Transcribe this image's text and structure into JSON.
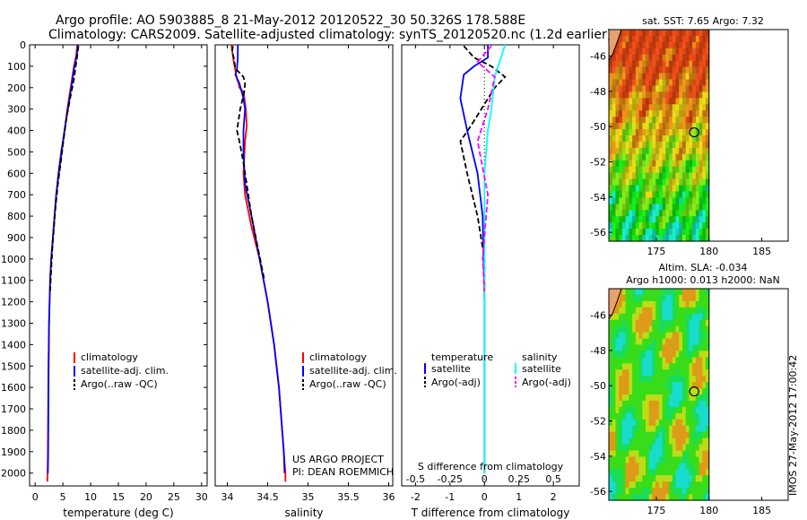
{
  "figure": {
    "title_line1": "Argo profile: AO 5903885_8 21-May-2012 20120522_30 50.326S 178.588E",
    "title_line2": "Climatology: CARS2009. Satellite-adjusted climatology: synTS_20120520.nc (1.2d earlier)",
    "side_stamp": "IMOS 27-May-2012 17:00:42",
    "project_line1": "US ARGO PROJECT",
    "project_line2": "PI: DEAN ROEMMICH"
  },
  "colors": {
    "climatology": "#ff0000",
    "satellite": "#0000ff",
    "argo": "#000000",
    "salinity_satellite": "#00ffff",
    "salinity_argo": "#ff00ff",
    "land": "#e8a070"
  },
  "chart_data": [
    {
      "type": "line",
      "panel": "temperature",
      "xlabel": "temperature (deg C)",
      "ylabel": "",
      "xlim": [
        -1,
        31
      ],
      "ylim": [
        2060,
        0
      ],
      "y_reversed": true,
      "xticks": [
        0,
        5,
        10,
        15,
        20,
        25,
        30
      ],
      "yticks": [
        0,
        100,
        200,
        300,
        400,
        500,
        600,
        700,
        800,
        900,
        1000,
        1100,
        1200,
        1300,
        1400,
        1500,
        1600,
        1700,
        1800,
        1900,
        2000
      ],
      "legend": [
        "climatology",
        "satellite-adj. clim.",
        "Argo(..raw -QC)"
      ],
      "legend_position": "lower-center",
      "series": [
        {
          "name": "climatology",
          "color": "#ff0000",
          "style": "solid",
          "x": [
            7.6,
            7.4,
            7.0,
            6.4,
            5.8,
            5.3,
            4.8,
            4.3,
            3.8,
            3.5,
            3.2,
            2.9,
            2.7,
            2.6,
            2.5,
            2.4,
            2.35,
            2.3,
            2.25,
            2.2
          ],
          "y": [
            0,
            50,
            100,
            200,
            300,
            400,
            500,
            600,
            700,
            800,
            900,
            1000,
            1100,
            1200,
            1300,
            1500,
            1700,
            1900,
            2000,
            2040
          ]
        },
        {
          "name": "satellite-adj. clim.",
          "color": "#0000ff",
          "style": "solid",
          "x": [
            7.7,
            7.5,
            7.1,
            6.5,
            5.9,
            5.3,
            4.7,
            4.2,
            3.8,
            3.5,
            3.2,
            2.9,
            2.7,
            2.6,
            2.5,
            2.45,
            2.4,
            2.35,
            2.3
          ],
          "y": [
            0,
            50,
            100,
            200,
            300,
            400,
            500,
            600,
            700,
            800,
            900,
            1000,
            1100,
            1200,
            1300,
            1500,
            1700,
            1900,
            2000
          ]
        },
        {
          "name": "Argo(..raw -QC)",
          "color": "#000000",
          "style": "dashed",
          "x": [
            7.8,
            7.6,
            7.3,
            7.0,
            6.3,
            5.6,
            5.1,
            4.6,
            4.1,
            3.7,
            3.4,
            3.1,
            2.9,
            2.7
          ],
          "y": [
            5,
            50,
            100,
            160,
            250,
            350,
            450,
            550,
            650,
            750,
            850,
            950,
            1050,
            1150
          ]
        }
      ]
    },
    {
      "type": "line",
      "panel": "salinity",
      "xlabel": "salinity",
      "ylabel": "",
      "xlim": [
        33.85,
        36.05
      ],
      "ylim": [
        2060,
        0
      ],
      "y_reversed": true,
      "xticks": [
        34,
        34.5,
        35,
        35.5,
        36
      ],
      "xtick_labels": [
        "34",
        "34.5",
        "35",
        "35.5",
        "36"
      ],
      "legend": [
        "climatology",
        "satellite-adj. clim.",
        "Argo(..raw -QC)"
      ],
      "legend_position": "lower-right",
      "series": [
        {
          "name": "climatology",
          "color": "#ff0000",
          "style": "solid",
          "x": [
            34.05,
            34.08,
            34.1,
            34.12,
            34.14,
            34.15,
            34.2,
            34.23,
            34.24,
            34.22,
            34.2,
            34.22,
            34.3,
            34.4,
            34.5,
            34.58,
            34.64,
            34.68,
            34.7,
            34.72,
            34.72
          ],
          "y": [
            0,
            80,
            120,
            160,
            180,
            200,
            220,
            300,
            380,
            450,
            600,
            700,
            850,
            1000,
            1200,
            1400,
            1600,
            1800,
            1900,
            2000,
            2040
          ]
        },
        {
          "name": "satellite-adj. clim.",
          "color": "#0000ff",
          "style": "solid",
          "x": [
            34.13,
            34.13,
            34.12,
            34.1,
            34.15,
            34.2,
            34.22,
            34.2,
            34.2,
            34.22,
            34.3,
            34.4,
            34.5,
            34.58,
            34.64,
            34.68,
            34.7,
            34.71
          ],
          "y": [
            0,
            60,
            110,
            140,
            180,
            250,
            300,
            400,
            500,
            650,
            800,
            1000,
            1200,
            1400,
            1600,
            1800,
            1900,
            2000
          ]
        },
        {
          "name": "Argo(..raw -QC)",
          "color": "#000000",
          "style": "dashed",
          "x": [
            34.07,
            34.06,
            34.08,
            34.1,
            34.2,
            34.22,
            34.21,
            34.16,
            34.12,
            34.15,
            34.2,
            34.24,
            34.3,
            34.38,
            34.46
          ],
          "y": [
            5,
            30,
            60,
            110,
            150,
            180,
            220,
            300,
            400,
            450,
            550,
            650,
            800,
            950,
            1100
          ]
        }
      ]
    },
    {
      "type": "line",
      "panel": "difference",
      "xlabel": "T difference from climatology",
      "xlabel_top": "S difference from climatology",
      "ylabel": "",
      "xlim": [
        -2.4,
        2.75
      ],
      "ylim": [
        2060,
        0
      ],
      "y_reversed": true,
      "xticks": [
        -2,
        -1,
        0,
        1,
        2
      ],
      "xticks_top": [
        -0.5,
        -0.25,
        0,
        0.25,
        0.5
      ],
      "xtick_labels_top": [
        "-0.5",
        "-0.25",
        "0",
        "0.25",
        "0.5"
      ],
      "legend_headers": [
        "temperature",
        "salinity"
      ],
      "legend": [
        "satellite",
        "Argo(-adj)",
        "satellite",
        "Argo(-adj)"
      ],
      "legend_position": "lower-center",
      "series": [
        {
          "name": "satellite",
          "color": "#0000ff",
          "style": "solid",
          "x": [
            0.1,
            0.1,
            -0.3,
            -0.6,
            -0.7,
            -0.5,
            -0.2,
            -0.05,
            0.0,
            0.0
          ],
          "y": [
            0,
            60,
            100,
            140,
            250,
            400,
            600,
            800,
            1200,
            2000
          ]
        },
        {
          "name": "Argo(-adj)",
          "color": "#000000",
          "style": "dashed",
          "x": [
            -0.6,
            -0.3,
            0.2,
            0.6,
            0.3,
            -0.4,
            -0.7,
            -0.5,
            -0.2,
            0.0,
            0.0
          ],
          "y": [
            5,
            60,
            100,
            150,
            200,
            380,
            450,
            600,
            800,
            1000,
            1150
          ]
        },
        {
          "name": "satellite",
          "color": "#00ffff",
          "style": "solid",
          "x": [
            0.6,
            0.5,
            0.3,
            0.2,
            0.1,
            0.0,
            0.0,
            0.0
          ],
          "y": [
            0,
            50,
            150,
            300,
            400,
            600,
            1200,
            2000
          ]
        },
        {
          "name": "Argo(-adj)",
          "color": "#ff00ff",
          "style": "dashed",
          "x": [
            0.2,
            -0.2,
            0.3,
            0.1,
            -0.2,
            0.1,
            -0.05,
            0.0
          ],
          "y": [
            5,
            80,
            150,
            300,
            450,
            700,
            1000,
            1150
          ]
        }
      ]
    },
    {
      "type": "heatmap",
      "panel": "map-sst",
      "title": "sat. SST: 7.65 Argo: 7.32",
      "xlim": [
        170.5,
        187.5
      ],
      "ylim": [
        -56.5,
        -44.5
      ],
      "xticks": [
        175,
        180,
        185
      ],
      "yticks": [
        -46,
        -48,
        -50,
        -52,
        -54,
        -56
      ],
      "marker": {
        "lon": 178.588,
        "lat": -50.326
      }
    },
    {
      "type": "heatmap",
      "panel": "map-sla",
      "title_line1": "Altim. SLA: -0.034",
      "title_line2": "Argo h1000: 0.013 h2000: NaN",
      "xlim": [
        170.5,
        187.5
      ],
      "ylim": [
        -56.5,
        -44.5
      ],
      "xticks": [
        175,
        180,
        185
      ],
      "yticks": [
        -46,
        -48,
        -50,
        -52,
        -54,
        -56
      ],
      "marker": {
        "lon": 178.588,
        "lat": -50.326
      }
    }
  ]
}
